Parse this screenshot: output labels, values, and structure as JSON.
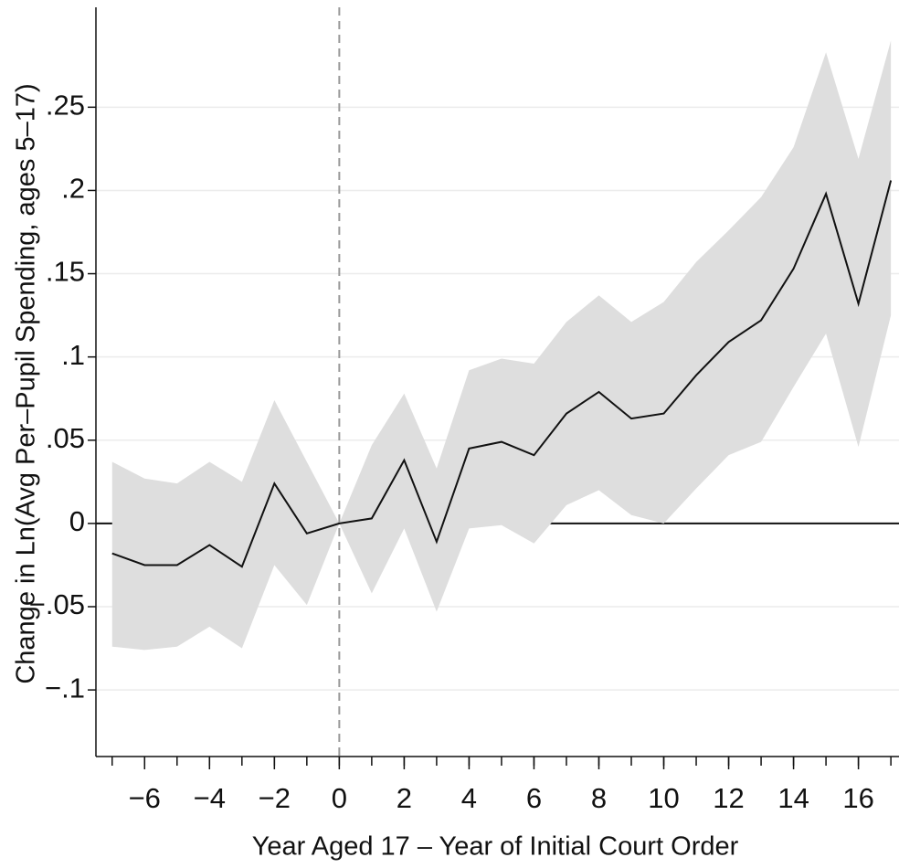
{
  "chart_data": {
    "type": "line",
    "x_label": "Year Aged 17 – Year of Initial Court Order",
    "y_label": "Change in Ln(Avg Per–Pupil Spending, ages 5–17)",
    "x": [
      -7,
      -6,
      -5,
      -4,
      -3,
      -2,
      -1,
      0,
      1,
      2,
      3,
      4,
      5,
      6,
      7,
      8,
      9,
      10,
      11,
      12,
      13,
      14,
      15,
      16,
      17
    ],
    "values": [
      -0.018,
      -0.025,
      -0.025,
      -0.013,
      -0.026,
      0.024,
      -0.006,
      0,
      0.003,
      0.038,
      -0.011,
      0.045,
      0.049,
      0.041,
      0.066,
      0.079,
      0.063,
      0.066,
      0.089,
      0.109,
      0.122,
      0.153,
      0.198,
      0.132,
      0.206
    ],
    "ci_lower": [
      -0.074,
      -0.076,
      -0.074,
      -0.062,
      -0.075,
      -0.025,
      -0.049,
      0,
      -0.042,
      -0.003,
      -0.053,
      -0.003,
      -0.001,
      -0.012,
      0.011,
      0.02,
      0.005,
      0.0,
      0.021,
      0.041,
      0.049,
      0.082,
      0.114,
      0.046,
      0.125
    ],
    "ci_upper": [
      0.037,
      0.027,
      0.024,
      0.037,
      0.025,
      0.074,
      0.037,
      0,
      0.047,
      0.078,
      0.033,
      0.092,
      0.099,
      0.096,
      0.121,
      0.137,
      0.121,
      0.133,
      0.157,
      0.176,
      0.196,
      0.226,
      0.283,
      0.219,
      0.29
    ],
    "color": "#111111",
    "band_color": "#dedede",
    "xlim": [
      -7.5,
      17.25
    ],
    "ylim": [
      -0.14,
      0.31
    ],
    "xticks": [
      {
        "value": -6,
        "label": "−6"
      },
      {
        "value": -4,
        "label": "−4"
      },
      {
        "value": -2,
        "label": "−2"
      },
      0,
      2,
      4,
      6,
      8,
      10,
      12,
      14,
      16
    ],
    "xminor_ticks": [
      -7,
      -6,
      -5,
      -4,
      -3,
      -2,
      -1,
      0,
      1,
      2,
      3,
      4,
      5,
      6,
      7,
      8,
      9,
      10,
      11,
      12,
      13,
      14,
      15,
      16,
      17
    ],
    "yticks": [
      {
        "value": -0.1,
        "label": "−.1"
      },
      {
        "value": -0.05,
        "label": "−.05"
      },
      0,
      {
        "value": 0.05,
        "label": ".05"
      },
      {
        "value": 0.1,
        "label": ".1"
      },
      {
        "value": 0.15,
        "label": ".15"
      },
      {
        "value": 0.2,
        "label": ".2"
      },
      {
        "value": 0.25,
        "label": ".25"
      }
    ],
    "vline": 0,
    "hline": 0,
    "grid": true
  }
}
